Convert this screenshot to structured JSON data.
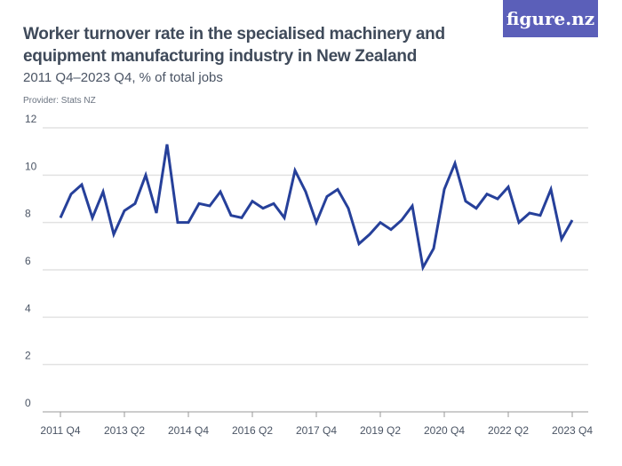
{
  "title": "Worker turnover rate in the specialised machinery and equipment manufacturing industry in New Zealand",
  "subtitle": "2011 Q4–2023 Q4, % of total jobs",
  "provider": "Provider: Stats NZ",
  "logo": "figure.nz",
  "colors": {
    "line": "#26409a",
    "grid": "#e2e2e2",
    "logo_bg": "#5b5fb9"
  },
  "chart_data": {
    "type": "line",
    "title": "Worker turnover rate in the specialised machinery and equipment manufacturing industry in New Zealand",
    "xlabel": "",
    "ylabel": "",
    "ylim": [
      0,
      12
    ],
    "yticks": [
      0,
      2,
      4,
      6,
      8,
      10,
      12
    ],
    "xtick_labels": [
      "2011 Q4",
      "2013 Q2",
      "2014 Q4",
      "2016 Q2",
      "2017 Q4",
      "2019 Q2",
      "2020 Q4",
      "2022 Q2",
      "2023 Q4"
    ],
    "grid": true,
    "x_start": "2011 Q4",
    "x_end": "2023 Q4",
    "values": [
      8.2,
      9.2,
      9.6,
      8.2,
      9.3,
      7.5,
      8.5,
      8.8,
      10.0,
      8.4,
      11.3,
      8.0,
      8.0,
      8.8,
      8.7,
      9.3,
      8.3,
      8.2,
      8.9,
      8.6,
      8.8,
      8.2,
      10.2,
      9.3,
      8.0,
      9.1,
      9.4,
      8.6,
      7.1,
      7.5,
      8.0,
      7.7,
      8.1,
      8.7,
      6.1,
      6.9,
      9.4,
      10.5,
      8.9,
      8.6,
      9.2,
      9.0,
      9.5,
      8.0,
      8.4,
      8.3,
      9.4,
      7.3,
      8.1
    ]
  }
}
